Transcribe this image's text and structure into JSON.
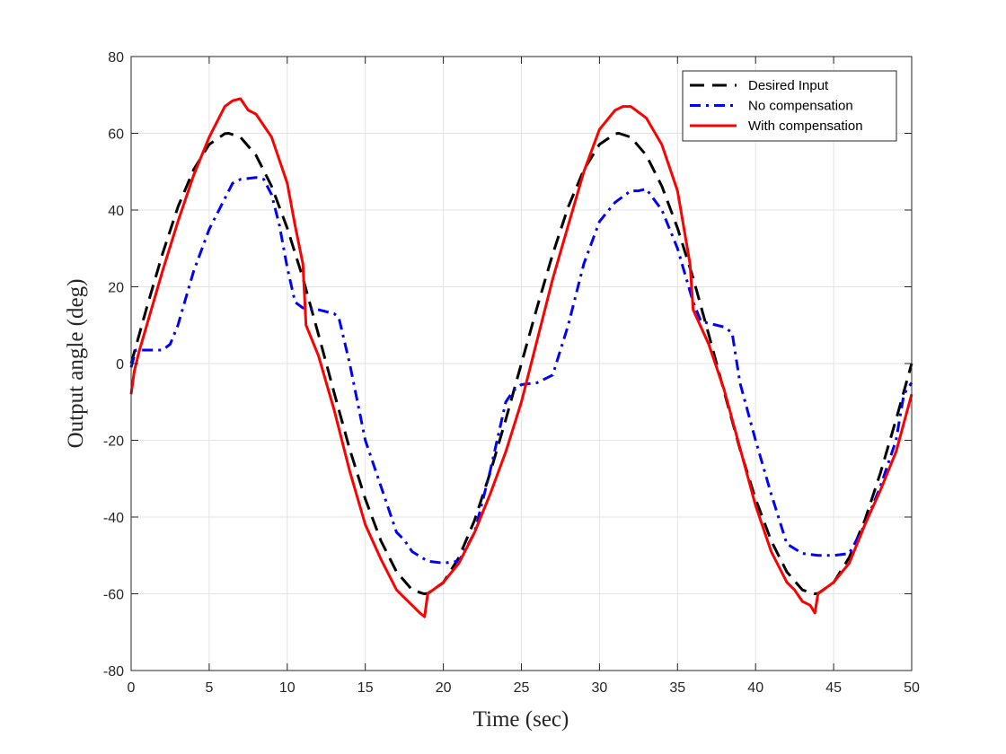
{
  "chart_data": {
    "type": "line",
    "title": "",
    "xlabel": "Time (sec)",
    "ylabel": "Output angle (deg)",
    "xlim": [
      0,
      50
    ],
    "ylim": [
      -80,
      80
    ],
    "x_ticks": [
      0,
      5,
      10,
      15,
      20,
      25,
      30,
      35,
      40,
      45,
      50
    ],
    "y_ticks": [
      -80,
      -60,
      -40,
      -20,
      0,
      20,
      40,
      60,
      80
    ],
    "grid": true,
    "legend_position": "top-right",
    "series": [
      {
        "name": "Desired Input",
        "color": "#000000",
        "style": "dashed",
        "x": [
          0,
          1,
          2,
          3,
          4,
          5,
          6,
          6.25,
          7,
          8,
          9,
          10,
          11,
          12,
          12.5,
          13,
          14,
          15,
          16,
          17,
          18,
          18.75,
          19,
          20,
          21,
          22,
          23,
          24,
          25,
          26,
          27,
          28,
          29,
          30,
          31,
          31.25,
          32,
          33,
          34,
          35,
          36,
          37,
          37.5,
          38,
          39,
          40,
          41,
          42,
          43,
          43.75,
          44,
          45,
          46,
          47,
          48,
          49,
          50
        ],
        "y": [
          0,
          14.6,
          28.5,
          40.8,
          50.5,
          57.1,
          59.9,
          60,
          59.0,
          54.3,
          46.2,
          35.3,
          22.3,
          7.5,
          0,
          -7.5,
          -22.3,
          -35.3,
          -46.2,
          -54.3,
          -59.0,
          -60,
          -59.9,
          -57.1,
          -50.5,
          -40.8,
          -28.5,
          -14.6,
          0,
          14.6,
          28.5,
          40.8,
          50.5,
          57.1,
          59.9,
          60,
          59.0,
          54.3,
          46.2,
          35.3,
          22.3,
          7.5,
          0,
          -7.5,
          -22.3,
          -35.3,
          -46.2,
          -54.3,
          -59.0,
          -60,
          -59.9,
          -57.1,
          -50.5,
          -40.8,
          -28.5,
          -14.6,
          0
        ]
      },
      {
        "name": "No compensation",
        "color": "#0000ff",
        "style": "dashdot",
        "x": [
          0,
          0.3,
          1,
          2,
          2.5,
          3,
          4,
          5,
          6,
          6.5,
          7,
          8,
          8.5,
          9,
          9.5,
          10,
          10.5,
          11,
          12,
          13,
          13.3,
          14,
          14.5,
          15,
          16,
          17,
          17.5,
          18,
          19,
          20,
          21,
          22,
          23,
          24,
          24.5,
          25,
          26,
          27,
          28,
          29,
          30,
          31,
          32,
          32.5,
          33,
          34,
          35,
          36,
          36.5,
          37,
          38,
          38.5,
          39,
          40,
          41,
          42,
          43,
          44,
          45,
          46,
          47,
          48,
          49,
          49.5,
          50
        ],
        "y": [
          -1,
          3.5,
          3.5,
          3.5,
          5,
          10,
          24,
          35,
          43,
          47,
          48,
          48.5,
          48,
          44,
          36,
          25,
          16,
          14.5,
          14,
          13,
          12,
          0,
          -10,
          -20,
          -32,
          -44,
          -46,
          -49,
          -51.5,
          -52,
          -51.5,
          -44,
          -28,
          -10,
          -7,
          -5.5,
          -5,
          -3,
          10,
          26,
          37,
          42,
          45,
          45,
          45.5,
          40,
          30,
          16,
          11,
          10.5,
          9.5,
          8,
          -5,
          -20,
          -34,
          -47,
          -49.5,
          -50,
          -50,
          -49.5,
          -42,
          -32,
          -20,
          -8,
          -5
        ]
      },
      {
        "name": "With compensation",
        "color": "#ff0000",
        "style": "solid",
        "x": [
          0,
          0.2,
          0.5,
          1,
          2,
          3,
          4,
          5,
          5.5,
          6,
          6.5,
          7,
          7.5,
          8,
          9,
          10,
          10.5,
          11,
          11.2,
          12,
          13,
          14,
          15,
          16,
          17,
          17.5,
          18,
          18.5,
          18.8,
          19,
          20,
          21,
          22,
          23,
          24,
          25,
          26,
          27,
          28,
          29,
          30,
          31,
          31.5,
          32,
          33,
          34,
          35,
          35.8,
          36,
          37,
          38,
          39,
          40,
          41,
          42,
          42.5,
          43,
          43.5,
          43.8,
          44,
          45,
          46,
          47,
          48,
          49,
          50
        ],
        "y": [
          -8,
          -2,
          3,
          10,
          24,
          37,
          49,
          59,
          63,
          67,
          68.5,
          69,
          66,
          65,
          59,
          47,
          36,
          26,
          10,
          2,
          -12,
          -28,
          -42,
          -51,
          -59,
          -61,
          -63,
          -65,
          -66,
          -60,
          -57,
          -52,
          -44,
          -34,
          -23,
          -10,
          6,
          22,
          36,
          50,
          61,
          66,
          67,
          67,
          64,
          57,
          45,
          26,
          14,
          5,
          -7,
          -22,
          -37,
          -49,
          -57,
          -59,
          -62,
          -63,
          -65,
          -60,
          -57,
          -52,
          -42,
          -33,
          -23,
          -8
        ]
      }
    ]
  }
}
